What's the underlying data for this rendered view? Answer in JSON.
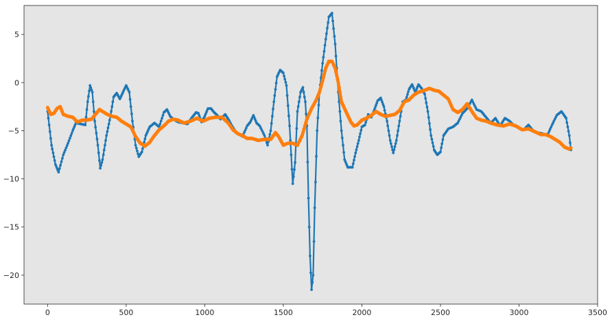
{
  "chart_data": {
    "type": "line",
    "title": "",
    "xlabel": "",
    "ylabel": "",
    "xlim": [
      -150,
      3500
    ],
    "ylim": [
      -23,
      8
    ],
    "xticks": [
      0,
      500,
      1000,
      1500,
      2000,
      2500,
      3000,
      3500
    ],
    "yticks": [
      5,
      0,
      -5,
      -10,
      -15,
      -20
    ],
    "grid": false,
    "background": "#e5e5e5",
    "series": [
      {
        "color": "#1f77b4",
        "marker": "dot",
        "points": [
          [
            0,
            -3
          ],
          [
            25,
            -6.5
          ],
          [
            50,
            -8.5
          ],
          [
            70,
            -9.3
          ],
          [
            100,
            -7.5
          ],
          [
            130,
            -6.3
          ],
          [
            160,
            -5
          ],
          [
            180,
            -4.2
          ],
          [
            210,
            -4.3
          ],
          [
            240,
            -4.4
          ],
          [
            255,
            -2
          ],
          [
            270,
            -0.3
          ],
          [
            285,
            -1
          ],
          [
            300,
            -4
          ],
          [
            320,
            -6.5
          ],
          [
            335,
            -8.9
          ],
          [
            350,
            -8
          ],
          [
            375,
            -5.5
          ],
          [
            400,
            -3.5
          ],
          [
            420,
            -1.5
          ],
          [
            440,
            -1.1
          ],
          [
            460,
            -1.7
          ],
          [
            480,
            -1
          ],
          [
            500,
            -0.3
          ],
          [
            520,
            -1
          ],
          [
            540,
            -4
          ],
          [
            560,
            -6.5
          ],
          [
            580,
            -7.7
          ],
          [
            600,
            -7.2
          ],
          [
            625,
            -5.5
          ],
          [
            650,
            -4.6
          ],
          [
            680,
            -4.2
          ],
          [
            710,
            -4.6
          ],
          [
            740,
            -3.1
          ],
          [
            760,
            -2.8
          ],
          [
            780,
            -3.5
          ],
          [
            800,
            -3.8
          ],
          [
            830,
            -4.1
          ],
          [
            860,
            -4.2
          ],
          [
            890,
            -4.3
          ],
          [
            920,
            -3.6
          ],
          [
            945,
            -3.1
          ],
          [
            960,
            -3.2
          ],
          [
            980,
            -4.1
          ],
          [
            1000,
            -3.5
          ],
          [
            1020,
            -2.7
          ],
          [
            1040,
            -2.7
          ],
          [
            1060,
            -3.1
          ],
          [
            1080,
            -3.4
          ],
          [
            1100,
            -3.8
          ],
          [
            1130,
            -3.3
          ],
          [
            1150,
            -3.8
          ],
          [
            1170,
            -4.4
          ],
          [
            1200,
            -5.2
          ],
          [
            1240,
            -5.6
          ],
          [
            1270,
            -4.5
          ],
          [
            1290,
            -4.1
          ],
          [
            1310,
            -3.4
          ],
          [
            1330,
            -4.2
          ],
          [
            1350,
            -4.5
          ],
          [
            1380,
            -5.5
          ],
          [
            1400,
            -6.5
          ],
          [
            1420,
            -5
          ],
          [
            1440,
            -2
          ],
          [
            1460,
            0.6
          ],
          [
            1480,
            1.3
          ],
          [
            1500,
            1
          ],
          [
            1520,
            -0.3
          ],
          [
            1540,
            -4.5
          ],
          [
            1560,
            -10.5
          ],
          [
            1575,
            -8.3
          ],
          [
            1590,
            -3
          ],
          [
            1610,
            -1
          ],
          [
            1625,
            -0.5
          ],
          [
            1640,
            -2
          ],
          [
            1650,
            -4.5
          ],
          [
            1660,
            -12
          ],
          [
            1670,
            -18
          ],
          [
            1680,
            -21.5
          ],
          [
            1690,
            -20
          ],
          [
            1700,
            -13
          ],
          [
            1715,
            -5
          ],
          [
            1730,
            -1
          ],
          [
            1750,
            2
          ],
          [
            1770,
            4.5
          ],
          [
            1790,
            6.8
          ],
          [
            1810,
            7.2
          ],
          [
            1830,
            4
          ],
          [
            1850,
            -1
          ],
          [
            1870,
            -5
          ],
          [
            1890,
            -8
          ],
          [
            1910,
            -8.8
          ],
          [
            1940,
            -8.8
          ],
          [
            1960,
            -7.3
          ],
          [
            1980,
            -6
          ],
          [
            2000,
            -4.6
          ],
          [
            2020,
            -4.4
          ],
          [
            2040,
            -3.3
          ],
          [
            2060,
            -3.6
          ],
          [
            2080,
            -2.8
          ],
          [
            2100,
            -1.9
          ],
          [
            2120,
            -1.6
          ],
          [
            2140,
            -2.5
          ],
          [
            2160,
            -4
          ],
          [
            2180,
            -6
          ],
          [
            2200,
            -7.3
          ],
          [
            2220,
            -6
          ],
          [
            2240,
            -4
          ],
          [
            2260,
            -2
          ],
          [
            2280,
            -1.8
          ],
          [
            2300,
            -0.7
          ],
          [
            2320,
            -0.2
          ],
          [
            2340,
            -1
          ],
          [
            2360,
            -0.2
          ],
          [
            2380,
            -0.6
          ],
          [
            2400,
            -1.2
          ],
          [
            2420,
            -3
          ],
          [
            2440,
            -5.5
          ],
          [
            2460,
            -7
          ],
          [
            2480,
            -7.5
          ],
          [
            2500,
            -7.2
          ],
          [
            2520,
            -5.5
          ],
          [
            2550,
            -4.8
          ],
          [
            2580,
            -4.6
          ],
          [
            2610,
            -4.2
          ],
          [
            2640,
            -3.2
          ],
          [
            2670,
            -2.7
          ],
          [
            2700,
            -1.8
          ],
          [
            2730,
            -2.8
          ],
          [
            2760,
            -3
          ],
          [
            2790,
            -3.6
          ],
          [
            2820,
            -4.2
          ],
          [
            2850,
            -3.7
          ],
          [
            2880,
            -4.5
          ],
          [
            2910,
            -3.7
          ],
          [
            2940,
            -4
          ],
          [
            2970,
            -4.5
          ],
          [
            3000,
            -4.7
          ],
          [
            3030,
            -4.9
          ],
          [
            3060,
            -4.4
          ],
          [
            3090,
            -5
          ],
          [
            3120,
            -5.2
          ],
          [
            3150,
            -5.3
          ],
          [
            3180,
            -5.5
          ],
          [
            3210,
            -4.4
          ],
          [
            3240,
            -3.4
          ],
          [
            3270,
            -3
          ],
          [
            3300,
            -3.7
          ],
          [
            3320,
            -5.5
          ],
          [
            3330,
            -7
          ]
        ]
      },
      {
        "color": "#ff7f0e",
        "marker": "dot",
        "points": [
          [
            0,
            -2.6
          ],
          [
            20,
            -3.3
          ],
          [
            40,
            -3.2
          ],
          [
            60,
            -2.7
          ],
          [
            80,
            -2.5
          ],
          [
            100,
            -3.3
          ],
          [
            130,
            -3.5
          ],
          [
            160,
            -3.6
          ],
          [
            190,
            -4.1
          ],
          [
            220,
            -3.9
          ],
          [
            250,
            -3.9
          ],
          [
            280,
            -3.8
          ],
          [
            310,
            -3.2
          ],
          [
            330,
            -2.8
          ],
          [
            350,
            -3
          ],
          [
            380,
            -3.3
          ],
          [
            410,
            -3.5
          ],
          [
            440,
            -3.6
          ],
          [
            470,
            -4
          ],
          [
            500,
            -4.3
          ],
          [
            530,
            -4.6
          ],
          [
            560,
            -5.6
          ],
          [
            590,
            -6.3
          ],
          [
            620,
            -6.6
          ],
          [
            650,
            -6.2
          ],
          [
            680,
            -5.5
          ],
          [
            710,
            -4.9
          ],
          [
            740,
            -4.5
          ],
          [
            770,
            -4
          ],
          [
            800,
            -3.8
          ],
          [
            830,
            -3.9
          ],
          [
            870,
            -4.2
          ],
          [
            910,
            -4
          ],
          [
            950,
            -3.7
          ],
          [
            990,
            -4
          ],
          [
            1030,
            -3.7
          ],
          [
            1070,
            -3.6
          ],
          [
            1110,
            -3.6
          ],
          [
            1150,
            -4.2
          ],
          [
            1180,
            -4.9
          ],
          [
            1210,
            -5.3
          ],
          [
            1240,
            -5.5
          ],
          [
            1270,
            -5.8
          ],
          [
            1300,
            -5.8
          ],
          [
            1340,
            -6
          ],
          [
            1380,
            -5.9
          ],
          [
            1420,
            -5.9
          ],
          [
            1450,
            -5.2
          ],
          [
            1470,
            -5.6
          ],
          [
            1500,
            -6.5
          ],
          [
            1530,
            -6.3
          ],
          [
            1560,
            -6.3
          ],
          [
            1590,
            -6.5
          ],
          [
            1620,
            -5.5
          ],
          [
            1650,
            -3.8
          ],
          [
            1680,
            -2.7
          ],
          [
            1710,
            -1.8
          ],
          [
            1730,
            -1
          ],
          [
            1750,
            0.2
          ],
          [
            1770,
            1.5
          ],
          [
            1790,
            2.2
          ],
          [
            1810,
            2.2
          ],
          [
            1830,
            1.5
          ],
          [
            1850,
            0
          ],
          [
            1870,
            -2
          ],
          [
            1890,
            -2.7
          ],
          [
            1910,
            -3.4
          ],
          [
            1930,
            -4.1
          ],
          [
            1950,
            -4.5
          ],
          [
            1970,
            -4.4
          ],
          [
            2000,
            -3.9
          ],
          [
            2030,
            -3.7
          ],
          [
            2060,
            -3.4
          ],
          [
            2090,
            -3
          ],
          [
            2120,
            -3.3
          ],
          [
            2150,
            -3.5
          ],
          [
            2180,
            -3.4
          ],
          [
            2210,
            -3.3
          ],
          [
            2240,
            -2.9
          ],
          [
            2270,
            -2
          ],
          [
            2300,
            -1.8
          ],
          [
            2330,
            -1.3
          ],
          [
            2360,
            -1
          ],
          [
            2400,
            -0.8
          ],
          [
            2430,
            -0.6
          ],
          [
            2460,
            -0.8
          ],
          [
            2490,
            -0.9
          ],
          [
            2520,
            -1.3
          ],
          [
            2550,
            -1.7
          ],
          [
            2580,
            -2.8
          ],
          [
            2610,
            -3.1
          ],
          [
            2640,
            -2.8
          ],
          [
            2670,
            -2.2
          ],
          [
            2700,
            -3
          ],
          [
            2730,
            -3.7
          ],
          [
            2760,
            -3.9
          ],
          [
            2790,
            -4
          ],
          [
            2820,
            -4.2
          ],
          [
            2860,
            -4.4
          ],
          [
            2900,
            -4.5
          ],
          [
            2940,
            -4.3
          ],
          [
            2980,
            -4.5
          ],
          [
            3020,
            -4.9
          ],
          [
            3060,
            -4.8
          ],
          [
            3100,
            -5.1
          ],
          [
            3140,
            -5.4
          ],
          [
            3170,
            -5.4
          ],
          [
            3200,
            -5.6
          ],
          [
            3230,
            -5.9
          ],
          [
            3260,
            -6.2
          ],
          [
            3290,
            -6.7
          ],
          [
            3320,
            -6.9
          ],
          [
            3330,
            -6.8
          ]
        ]
      }
    ]
  }
}
